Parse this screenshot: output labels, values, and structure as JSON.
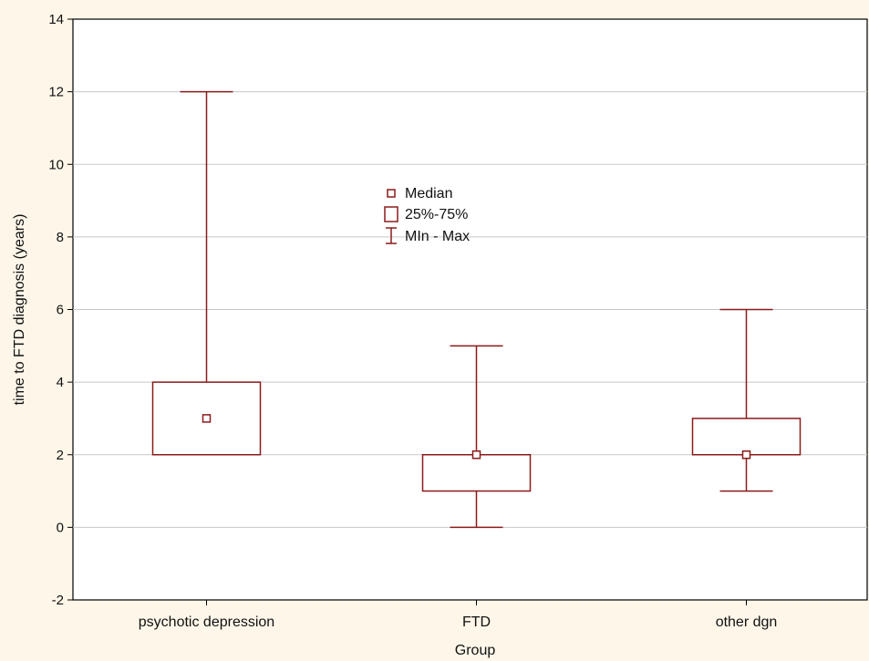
{
  "chart_data": {
    "type": "boxplot",
    "title": "",
    "xlabel": "Group",
    "ylabel": "time to FTD diagnosis  (years)",
    "ylim": [
      -2,
      14
    ],
    "yticks": [
      -2,
      0,
      2,
      4,
      6,
      8,
      10,
      12,
      14
    ],
    "grid": true,
    "categories": [
      "psychotic depression",
      "FTD",
      "other dgn"
    ],
    "boxes": [
      {
        "category": "psychotic depression",
        "min": 2,
        "q1": 2,
        "median": 3,
        "q3": 4,
        "max": 12
      },
      {
        "category": "FTD",
        "min": 0,
        "q1": 1,
        "median": 2,
        "q3": 2,
        "max": 5
      },
      {
        "category": "other dgn",
        "min": 1,
        "q1": 2,
        "median": 2,
        "q3": 3,
        "max": 6
      }
    ],
    "legend": {
      "placement": "inside-center",
      "entries": [
        {
          "symbol": "median-marker",
          "label": "Median"
        },
        {
          "symbol": "box",
          "label": "25%-75%"
        },
        {
          "symbol": "whisker",
          "label": "MIn - Max"
        }
      ]
    },
    "colors": {
      "series": "#8b1a1a",
      "plot_background": "#ffffff",
      "page_background": "#fdf6e9",
      "grid": "#c8c8c8"
    }
  }
}
